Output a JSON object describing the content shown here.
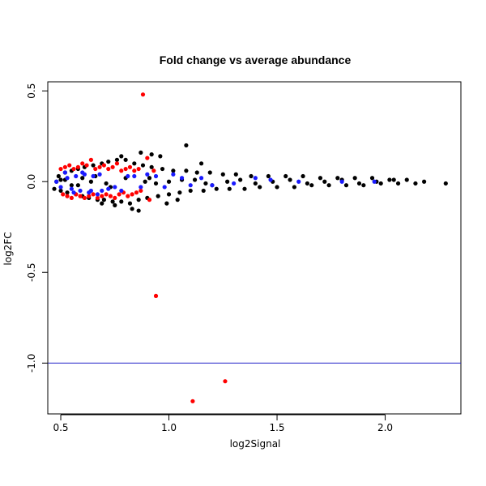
{
  "chart_data": {
    "type": "scatter",
    "title": "Fold change vs average abundance",
    "xlabel": "log2Signal",
    "ylabel": "log2FC",
    "xlim": [
      0.44,
      2.35
    ],
    "ylim": [
      -1.28,
      0.55
    ],
    "xticks": [
      0.5,
      1.0,
      1.5,
      2.0
    ],
    "xtick_labels": [
      "0.5",
      "1.0",
      "1.5",
      "2.0"
    ],
    "yticks": [
      0.5,
      0.0,
      -0.5,
      -1.0
    ],
    "ytick_labels": [
      "0.5",
      "0.0",
      "-0.5",
      "-1.0"
    ],
    "reference_line": {
      "y": -1.0,
      "color": "#2a2acc"
    },
    "grid": false,
    "legend": "none",
    "series": [
      {
        "color": "#000000",
        "x": [
          0.47,
          0.49,
          0.5,
          0.52,
          0.53,
          0.55,
          0.57,
          0.58,
          0.6,
          0.61,
          0.63,
          0.65,
          0.67,
          0.69,
          0.7,
          0.72,
          0.74,
          0.76,
          0.78,
          0.8,
          0.82,
          0.84,
          0.86,
          0.88,
          0.9,
          0.92,
          0.95,
          0.97,
          1.0,
          1.02,
          1.05,
          1.08,
          1.1,
          1.13,
          1.16,
          1.19,
          1.22,
          1.25,
          1.28,
          1.31,
          1.35,
          1.38,
          1.42,
          1.46,
          1.5,
          1.54,
          1.58,
          1.62,
          1.66,
          1.7,
          1.74,
          1.78,
          1.82,
          1.86,
          1.9,
          1.94,
          1.98,
          2.02,
          2.06,
          2.1,
          2.14,
          2.18,
          2.28,
          0.78,
          0.87,
          0.92,
          0.96,
          1.08,
          1.15,
          0.83,
          0.75,
          0.69,
          0.86,
          0.99,
          1.04,
          0.6,
          0.55,
          0.52,
          0.64,
          0.71,
          0.8,
          0.89,
          1.12,
          1.2,
          0.48,
          0.5,
          0.58,
          0.66,
          0.73,
          0.91,
          0.94,
          1.0,
          1.06,
          1.17,
          1.27,
          1.33,
          1.4,
          1.48,
          1.56,
          1.64,
          1.72,
          1.8,
          1.88,
          1.96,
          2.04
        ],
        "y": [
          -0.04,
          0.03,
          -0.05,
          0.05,
          -0.06,
          0.06,
          -0.07,
          0.07,
          -0.08,
          0.08,
          -0.09,
          0.09,
          -0.1,
          0.1,
          -0.1,
          0.11,
          -0.11,
          0.12,
          -0.11,
          0.12,
          -0.12,
          0.1,
          -0.1,
          0.09,
          -0.09,
          0.08,
          -0.08,
          0.07,
          -0.07,
          0.06,
          -0.06,
          0.06,
          -0.05,
          0.05,
          -0.05,
          0.05,
          -0.04,
          0.04,
          -0.04,
          0.04,
          -0.04,
          0.03,
          -0.03,
          0.03,
          -0.03,
          0.03,
          -0.03,
          0.03,
          -0.02,
          0.02,
          -0.02,
          0.02,
          -0.02,
          0.02,
          -0.02,
          0.02,
          -0.01,
          0.01,
          -0.01,
          0.01,
          -0.01,
          0.0,
          -0.01,
          0.14,
          0.16,
          0.15,
          0.14,
          0.2,
          0.1,
          -0.15,
          -0.13,
          -0.12,
          -0.16,
          -0.12,
          -0.1,
          0.02,
          -0.02,
          0.01,
          0.0,
          -0.01,
          0.02,
          0.0,
          0.01,
          -0.02,
          0.0,
          0.01,
          -0.02,
          0.03,
          -0.03,
          0.02,
          -0.01,
          0.0,
          0.01,
          -0.01,
          0.0,
          0.01,
          -0.01,
          0.0,
          0.01,
          -0.01,
          0.0,
          0.01,
          -0.01,
          0.0,
          0.01
        ]
      },
      {
        "color": "#ff0000",
        "x": [
          0.88,
          0.94,
          1.26,
          1.11,
          0.5,
          0.52,
          0.54,
          0.56,
          0.58,
          0.6,
          0.62,
          0.64,
          0.66,
          0.68,
          0.7,
          0.72,
          0.74,
          0.76,
          0.78,
          0.8,
          0.82,
          0.84,
          0.86,
          0.9,
          0.93,
          0.51,
          0.53,
          0.55,
          0.57,
          0.59,
          0.61,
          0.63,
          0.65,
          0.67,
          0.69,
          0.71,
          0.73,
          0.75,
          0.77,
          0.79,
          0.81,
          0.83,
          0.85,
          0.87,
          0.91
        ],
        "y": [
          0.48,
          -0.63,
          -1.1,
          -1.21,
          0.07,
          0.08,
          0.09,
          0.07,
          0.08,
          0.1,
          0.09,
          0.12,
          0.07,
          0.08,
          0.09,
          0.07,
          0.08,
          0.1,
          0.06,
          0.07,
          0.08,
          0.06,
          0.07,
          0.13,
          0.06,
          -0.07,
          -0.08,
          -0.09,
          -0.07,
          -0.08,
          -0.09,
          -0.08,
          -0.07,
          -0.09,
          -0.08,
          -0.07,
          -0.08,
          -0.09,
          -0.07,
          -0.06,
          -0.08,
          -0.07,
          -0.06,
          -0.05,
          -0.1
        ]
      },
      {
        "color": "#1a1aff",
        "x": [
          0.48,
          0.5,
          0.53,
          0.55,
          0.57,
          0.59,
          0.61,
          0.63,
          0.65,
          0.67,
          0.69,
          0.72,
          0.75,
          0.78,
          0.81,
          0.84,
          0.87,
          0.9,
          0.94,
          0.98,
          1.02,
          1.06,
          1.1,
          1.15,
          1.2,
          1.3,
          1.4,
          1.47,
          1.6,
          1.8,
          1.95,
          0.52,
          0.56,
          0.6,
          0.64,
          0.68
        ],
        "y": [
          0.0,
          -0.03,
          0.02,
          -0.04,
          0.03,
          -0.05,
          0.04,
          -0.06,
          0.03,
          -0.07,
          -0.05,
          -0.04,
          -0.03,
          -0.05,
          0.03,
          0.03,
          -0.03,
          0.04,
          0.03,
          -0.03,
          0.04,
          0.02,
          -0.02,
          0.02,
          -0.02,
          -0.01,
          0.02,
          0.01,
          0.0,
          0.0,
          0.0,
          0.05,
          -0.06,
          0.05,
          -0.05,
          0.04
        ]
      }
    ]
  }
}
